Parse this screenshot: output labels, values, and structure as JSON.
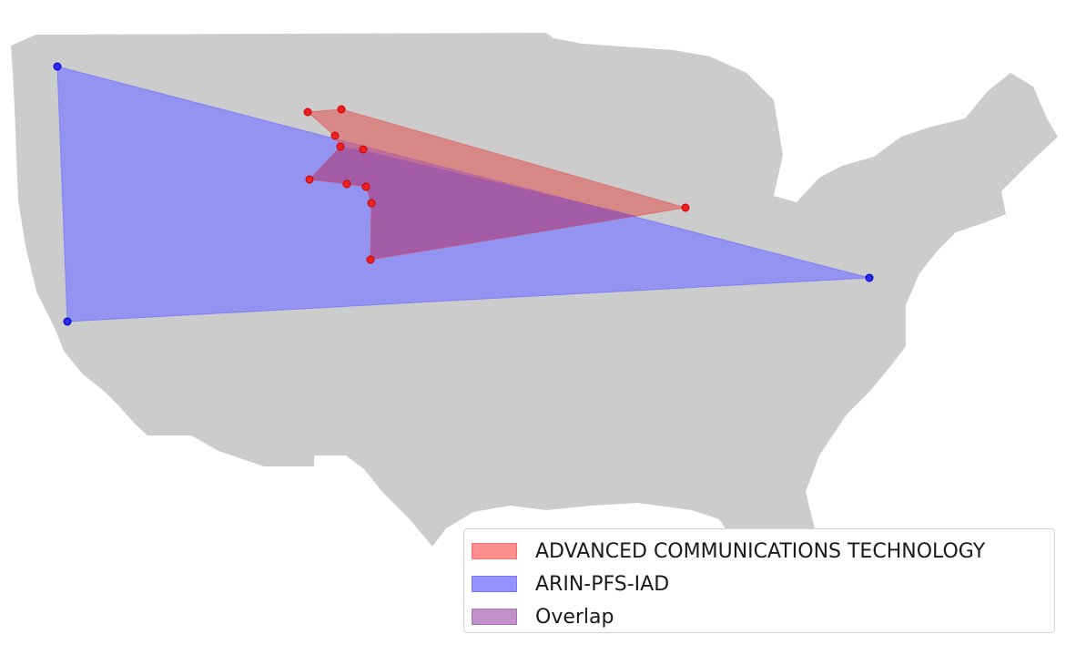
{
  "map": {
    "land_color": "#cccccc",
    "background_color": "#ffffff"
  },
  "legend": {
    "items": [
      {
        "label": "ADVANCED COMMUNICATIONS TECHNOLOGY",
        "color": "#ff7f7f"
      },
      {
        "label": "ARIN-PFS-IAD",
        "color": "#8080ff"
      },
      {
        "label": "Overlap",
        "color": "#b27fbf"
      }
    ]
  }
}
